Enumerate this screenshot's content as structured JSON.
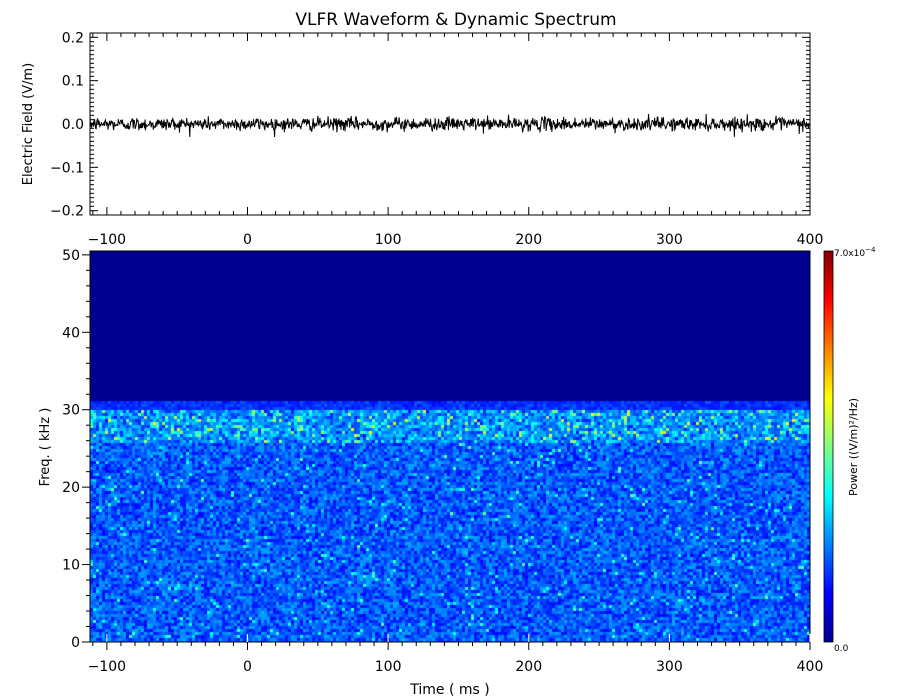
{
  "chart_data": [
    {
      "type": "line",
      "title": "VLFR Waveform & Dynamic Spectrum",
      "ylabel": "Electric Field  (V/m)",
      "xlabel": "",
      "xlim": [
        -112,
        400
      ],
      "ylim": [
        -0.21,
        0.21
      ],
      "x_ticks": [
        -100,
        0,
        100,
        200,
        300,
        400
      ],
      "x_tick_labels": [
        "−100",
        "0",
        "100",
        "200",
        "300",
        "400"
      ],
      "y_ticks": [
        -0.2,
        -0.1,
        0.0,
        0.1,
        0.2
      ],
      "y_tick_labels": [
        "−0.2",
        "−0.1",
        "0.0",
        "0.1",
        "0.2"
      ],
      "series": [
        {
          "color": "#000000",
          "mean": 0.0,
          "amplitude": 0.014,
          "max_excursion": 0.03,
          "x_range": [
            -112,
            400
          ]
        }
      ]
    },
    {
      "type": "heatmap",
      "xlabel": "Time ( ms )",
      "ylabel": "Freq. ( kHz )",
      "xlim": [
        -112,
        400
      ],
      "ylim": [
        0,
        50.5
      ],
      "x_ticks": [
        -100,
        0,
        100,
        200,
        300,
        400
      ],
      "x_tick_labels": [
        "−100",
        "0",
        "100",
        "200",
        "300",
        "400"
      ],
      "y_ticks": [
        0,
        10,
        20,
        30,
        40,
        50
      ],
      "y_tick_labels": [
        "0",
        "10",
        "20",
        "30",
        "40",
        "50"
      ],
      "signal_band_khz": [
        0,
        31
      ],
      "enhanced_band_khz": [
        26,
        30
      ],
      "colormap": "jet",
      "colorbar": {
        "label": "Power  ((V/m)²/Hz)",
        "min_label": "0.0",
        "max_mantissa": "7.0x10",
        "max_exponent": "−4",
        "min": 0.0,
        "max": 0.0007
      }
    }
  ],
  "colors": {
    "background": "#ffffff",
    "axes": "#000000",
    "empty_region": "#00008f",
    "line": "#000000"
  }
}
